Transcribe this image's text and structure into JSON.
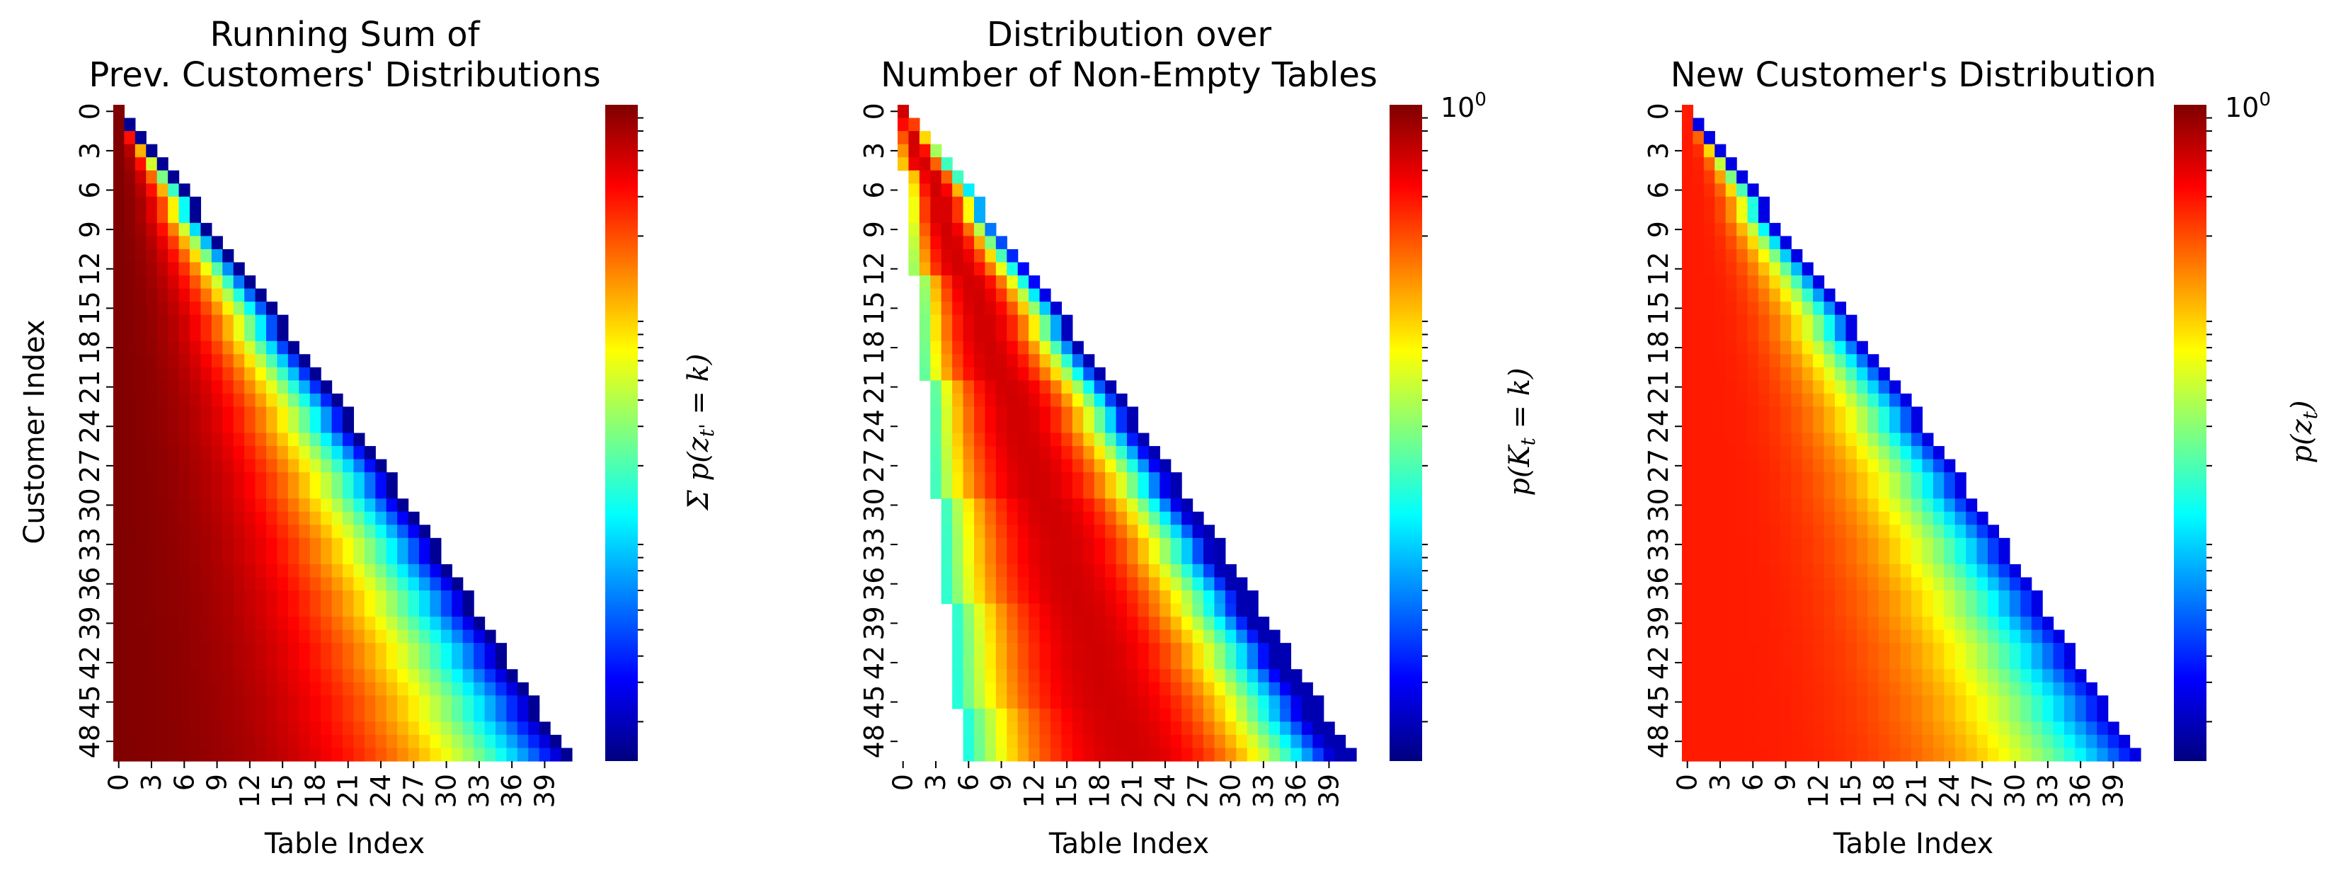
{
  "chart_data": [
    {
      "type": "heatmap",
      "title": [
        "Running Sum of",
        "Prev. Customers' Distributions"
      ],
      "xlabel": "Table Index",
      "ylabel": "Customer Index",
      "colorbar_label": "Σ_{t'=1}^{t-1} p(z_{t'} = k)",
      "x_ticks": [
        0,
        3,
        6,
        9,
        12,
        15,
        18,
        21,
        24,
        27,
        30,
        33,
        36,
        39
      ],
      "y_ticks": [
        0,
        3,
        6,
        9,
        12,
        15,
        18,
        21,
        24,
        27,
        30,
        33,
        36,
        39,
        42,
        45,
        48
      ],
      "colorscale": "jet",
      "log_scale": true,
      "n_rows": 50,
      "n_cols": 42,
      "mask": "upper-triangle (table index > customer index)",
      "pattern": "values decrease from dark red at low table indices to blue near the diagonal frontier"
    },
    {
      "type": "heatmap",
      "title": [
        "Distribution over",
        "Number of Non-Empty Tables"
      ],
      "xlabel": "Table Index",
      "ylabel": "",
      "colorbar_label": "p(K_t = k)",
      "colorbar_max_label": "10^0",
      "x_ticks": [
        0,
        3,
        6,
        9,
        12,
        15,
        18,
        21,
        24,
        27,
        30,
        33,
        36,
        39
      ],
      "y_ticks": [
        0,
        3,
        6,
        9,
        12,
        15,
        18,
        21,
        24,
        27,
        30,
        33,
        36,
        39,
        42,
        45,
        48
      ],
      "colorscale": "jet",
      "log_scale": true,
      "n_rows": 50,
      "n_cols": 42,
      "mask": "upper-triangle and low-probability left region",
      "pattern": "ridge of high probability (red) in middle, fading to blue at both edges"
    },
    {
      "type": "heatmap",
      "title": [
        "New Customer's Distribution"
      ],
      "xlabel": "Table Index",
      "ylabel": "",
      "colorbar_label": "p(z_t)",
      "colorbar_max_label": "10^0",
      "x_ticks": [
        0,
        3,
        6,
        9,
        12,
        15,
        18,
        21,
        24,
        27,
        30,
        33,
        36,
        39
      ],
      "y_ticks": [
        0,
        3,
        6,
        9,
        12,
        15,
        18,
        21,
        24,
        27,
        30,
        33,
        36,
        39,
        42,
        45,
        48
      ],
      "colorscale": "jet",
      "log_scale": true,
      "n_rows": 50,
      "n_cols": 42,
      "mask": "upper-triangle (table index > customer index)",
      "pattern": "mostly orange-red, decaying to blue near the diagonal frontier"
    }
  ]
}
